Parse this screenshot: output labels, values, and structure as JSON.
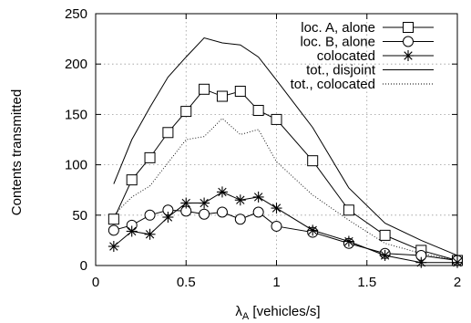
{
  "chart_data": {
    "type": "line",
    "title": "",
    "xlabel_main": "λ",
    "xlabel_sub": "A",
    "xlabel_rest": " [vehicles/s]",
    "ylabel": "Contents transmitted",
    "xlim": [
      0,
      2
    ],
    "ylim": [
      0,
      250
    ],
    "xticks": [
      0,
      0.5,
      1,
      1.5,
      2
    ],
    "xtick_labels": [
      "0",
      "0.5",
      "1",
      "1.5",
      "2"
    ],
    "yticks": [
      0,
      50,
      100,
      150,
      200,
      250
    ],
    "ytick_labels": [
      "0",
      "50",
      "100",
      "150",
      "200",
      "250"
    ],
    "grid": true,
    "legend_position": "top-right",
    "series": [
      {
        "name": "loc. A, alone",
        "marker": "square",
        "line": "solid",
        "x": [
          0.1,
          0.2,
          0.3,
          0.4,
          0.5,
          0.6,
          0.7,
          0.8,
          0.9,
          1.0,
          1.2,
          1.4,
          1.6,
          1.8,
          2.0
        ],
        "y": [
          46,
          85,
          107,
          132,
          153,
          175,
          168,
          173,
          154,
          145,
          104,
          55,
          30,
          15,
          5
        ]
      },
      {
        "name": "loc. B, alone",
        "marker": "circle",
        "line": "solid",
        "x": [
          0.1,
          0.2,
          0.3,
          0.4,
          0.5,
          0.6,
          0.7,
          0.8,
          0.9,
          1.0,
          1.2,
          1.4,
          1.6,
          1.8,
          2.0
        ],
        "y": [
          35,
          40,
          50,
          55,
          54,
          51,
          53,
          46,
          53,
          39,
          33,
          22,
          12,
          10,
          5
        ]
      },
      {
        "name": "colocated",
        "marker": "star",
        "line": "solid",
        "x": [
          0.1,
          0.2,
          0.3,
          0.4,
          0.5,
          0.6,
          0.7,
          0.8,
          0.9,
          1.0,
          1.2,
          1.4,
          1.6,
          1.8,
          2.0
        ],
        "y": [
          19,
          34,
          31,
          48,
          62,
          62,
          73,
          65,
          68,
          57,
          35,
          24,
          10,
          3,
          3
        ]
      },
      {
        "name": "tot., disjoint",
        "marker": "none",
        "line": "solid",
        "x": [
          0.1,
          0.2,
          0.3,
          0.4,
          0.5,
          0.6,
          0.7,
          0.8,
          0.9,
          1.0,
          1.2,
          1.4,
          1.6,
          1.8,
          2.0
        ],
        "y": [
          81,
          125,
          157,
          187,
          207,
          226,
          221,
          219,
          207,
          184,
          137,
          77,
          42,
          25,
          10
        ]
      },
      {
        "name": "tot., colocated",
        "marker": "none",
        "line": "dotted",
        "x": [
          0.1,
          0.2,
          0.3,
          0.4,
          0.5,
          0.6,
          0.7,
          0.8,
          0.9,
          1.0,
          1.2,
          1.4,
          1.6,
          1.8,
          2.0
        ],
        "y": [
          50,
          68,
          79,
          102,
          125,
          128,
          146,
          130,
          135,
          103,
          70,
          45,
          22,
          12,
          5
        ]
      }
    ]
  }
}
